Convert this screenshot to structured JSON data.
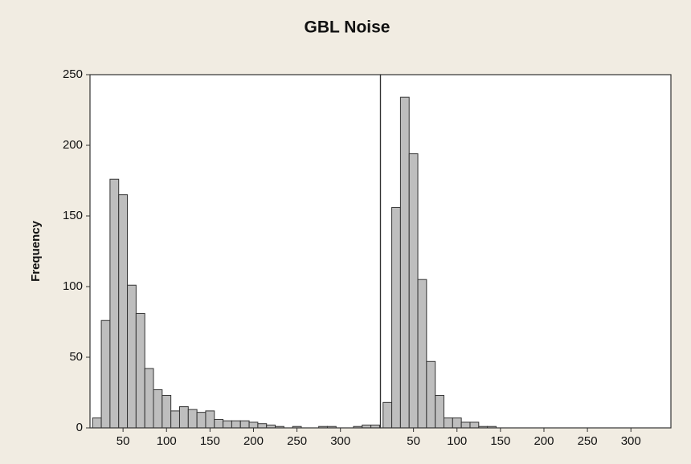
{
  "chart_data": {
    "type": "histogram",
    "title": "GBL Noise",
    "ylabel": "Frequency",
    "ylim": [
      0,
      250
    ],
    "yticks": [
      0,
      50,
      100,
      150,
      200,
      250
    ],
    "color": "#bebebe",
    "panels": [
      {
        "xlim": [
          12,
          346
        ],
        "xticks": [
          50,
          100,
          150,
          200,
          250,
          300
        ],
        "bins": [
          15,
          25,
          35,
          45,
          55,
          65,
          75,
          85,
          95,
          105,
          115,
          125,
          135,
          145,
          155,
          165,
          175,
          185,
          195,
          205,
          215,
          225,
          235,
          245,
          255,
          265,
          275,
          285,
          295,
          305,
          315,
          325,
          335,
          345
        ],
        "counts": [
          7,
          76,
          176,
          165,
          101,
          81,
          42,
          27,
          23,
          12,
          15,
          13,
          11,
          12,
          6,
          5,
          5,
          5,
          4,
          3,
          2,
          1,
          0,
          1,
          0,
          0,
          1,
          1,
          0,
          0,
          1,
          2,
          2
        ]
      },
      {
        "xlim": [
          12,
          346
        ],
        "xticks": [
          50,
          100,
          150,
          200,
          250,
          300
        ],
        "bins": [
          15,
          25,
          35,
          45,
          55,
          65,
          75,
          85,
          95,
          105,
          115,
          125,
          135,
          145
        ],
        "counts": [
          18,
          156,
          234,
          194,
          105,
          47,
          23,
          7,
          7,
          4,
          4,
          1,
          1
        ]
      }
    ]
  }
}
